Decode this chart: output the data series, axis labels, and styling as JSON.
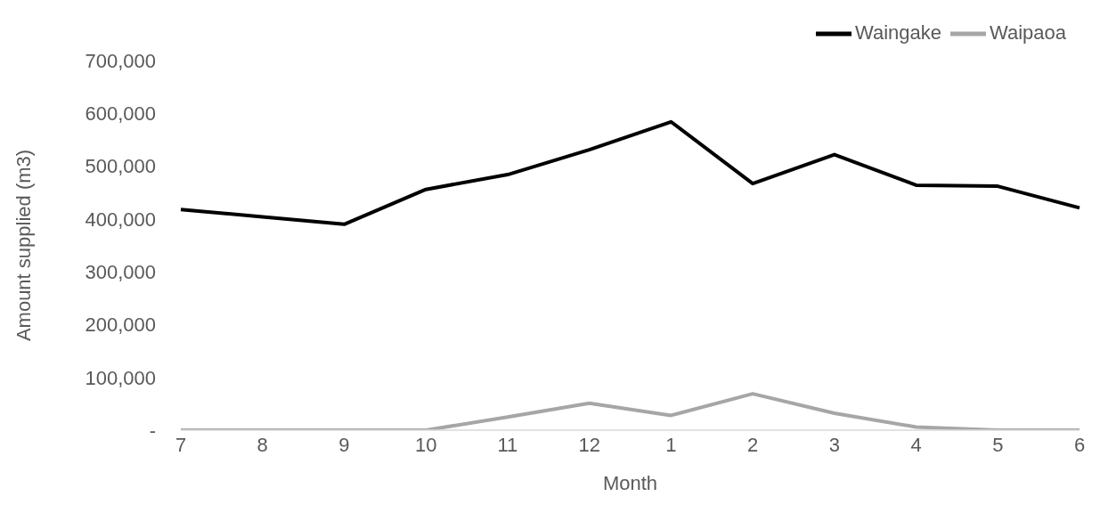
{
  "chart_data": {
    "type": "line",
    "xlabel": "Month",
    "ylabel": "Amount supplied (m3)",
    "categories": [
      "7",
      "8",
      "9",
      "10",
      "11",
      "12",
      "1",
      "2",
      "3",
      "4",
      "5",
      "6"
    ],
    "series": [
      {
        "name": "Waingake",
        "color": "#000000",
        "values": [
          418000,
          404000,
          390000,
          456000,
          484000,
          531000,
          584000,
          467000,
          522000,
          464000,
          462000,
          421000
        ]
      },
      {
        "name": "Waipaoa",
        "color": "#a6a6a6",
        "values": [
          0,
          0,
          0,
          0,
          25000,
          51000,
          28000,
          69000,
          32000,
          6000,
          0,
          0
        ]
      }
    ],
    "ylim": [
      0,
      700000
    ],
    "yticks": [
      {
        "value": 0,
        "label": "-"
      },
      {
        "value": 100000,
        "label": "100,000"
      },
      {
        "value": 200000,
        "label": "200,000"
      },
      {
        "value": 300000,
        "label": "300,000"
      },
      {
        "value": 400000,
        "label": "400,000"
      },
      {
        "value": 500000,
        "label": "500,000"
      },
      {
        "value": 600000,
        "label": "600,000"
      },
      {
        "value": 700000,
        "label": "700,000"
      }
    ],
    "legend": "top right",
    "marker": "none",
    "line_style": "solid"
  }
}
